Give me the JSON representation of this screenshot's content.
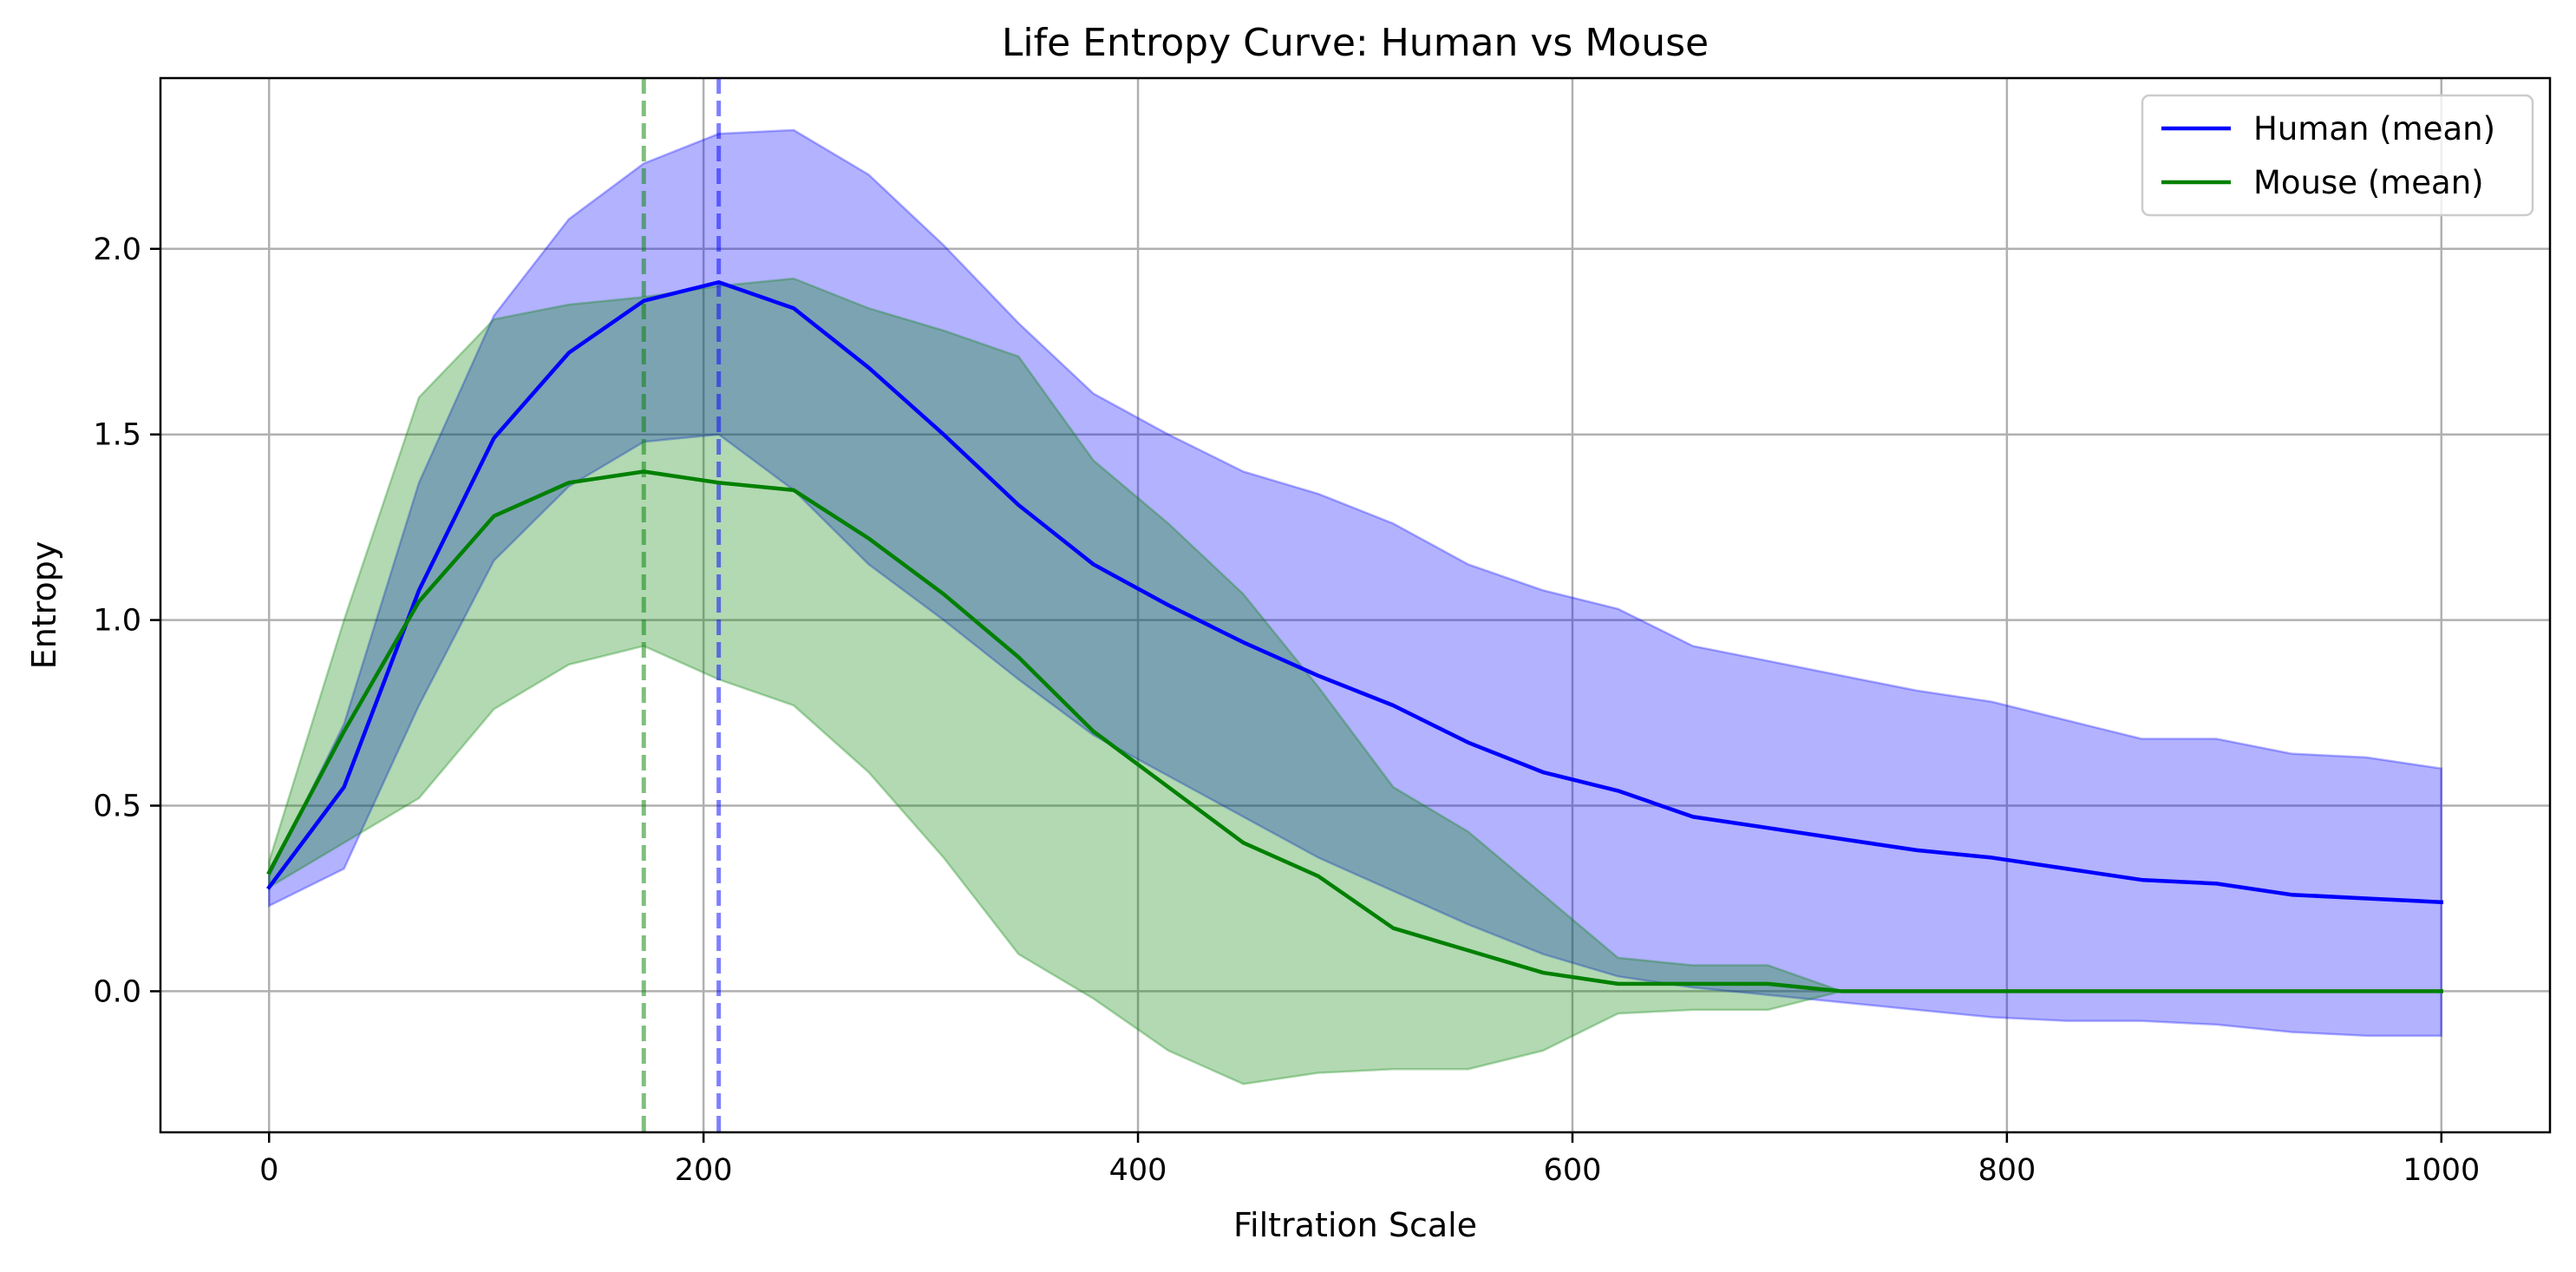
{
  "chart_data": {
    "type": "line",
    "title": "Life Entropy Curve: Human vs Mouse",
    "xlabel": "Filtration Scale",
    "ylabel": "Entropy",
    "xlim": [
      -50,
      1050
    ],
    "ylim": [
      -0.38,
      2.46
    ],
    "xticks": [
      0,
      200,
      400,
      600,
      800,
      1000
    ],
    "xtick_labels": [
      "0",
      "200",
      "400",
      "600",
      "800",
      "1000"
    ],
    "yticks": [
      0.0,
      0.5,
      1.0,
      1.5,
      2.0
    ],
    "ytick_labels": [
      "0.0",
      "0.5",
      "1.0",
      "1.5",
      "2.0"
    ],
    "grid": true,
    "legend_position": "top-right",
    "x": [
      0,
      34.5,
      69,
      103.5,
      138,
      172.5,
      207,
      241.5,
      276,
      310.5,
      345,
      379.5,
      414,
      448.5,
      483,
      517.5,
      552,
      586.5,
      621,
      655.5,
      690,
      724,
      758.5,
      793,
      827.5,
      862,
      896.5,
      931,
      965.5,
      1000
    ],
    "series": [
      {
        "name": "Human (mean)",
        "color": "#0000ff",
        "band_color": "#0000ff",
        "mean": [
          0.28,
          0.55,
          1.08,
          1.49,
          1.72,
          1.86,
          1.91,
          1.84,
          1.68,
          1.5,
          1.31,
          1.15,
          1.04,
          0.94,
          0.85,
          0.77,
          0.67,
          0.59,
          0.54,
          0.47,
          0.44,
          0.41,
          0.38,
          0.36,
          0.33,
          0.3,
          0.29,
          0.26,
          0.25,
          0.24
        ],
        "upper": [
          0.31,
          0.72,
          1.37,
          1.82,
          2.08,
          2.23,
          2.31,
          2.32,
          2.2,
          2.01,
          1.8,
          1.61,
          1.5,
          1.4,
          1.34,
          1.26,
          1.15,
          1.08,
          1.03,
          0.93,
          0.89,
          0.85,
          0.81,
          0.78,
          0.73,
          0.68,
          0.68,
          0.64,
          0.63,
          0.6
        ],
        "lower": [
          0.23,
          0.33,
          0.77,
          1.16,
          1.36,
          1.48,
          1.5,
          1.35,
          1.15,
          1.0,
          0.84,
          0.69,
          0.58,
          0.47,
          0.36,
          0.27,
          0.18,
          0.1,
          0.04,
          0.01,
          -0.01,
          -0.03,
          -0.05,
          -0.07,
          -0.08,
          -0.08,
          -0.09,
          -0.11,
          -0.12,
          -0.12
        ],
        "peak_x": 207
      },
      {
        "name": "Mouse (mean)",
        "color": "#008000",
        "band_color": "#008000",
        "mean": [
          0.32,
          0.7,
          1.05,
          1.28,
          1.37,
          1.4,
          1.37,
          1.35,
          1.22,
          1.07,
          0.9,
          0.7,
          0.55,
          0.4,
          0.31,
          0.17,
          0.11,
          0.05,
          0.02,
          0.02,
          0.02,
          0.0,
          0.0,
          0.0,
          0.0,
          0.0,
          0.0,
          0.0,
          0.0,
          0.0
        ],
        "upper": [
          0.35,
          1.0,
          1.6,
          1.81,
          1.85,
          1.87,
          1.9,
          1.92,
          1.84,
          1.78,
          1.71,
          1.43,
          1.26,
          1.07,
          0.82,
          0.55,
          0.43,
          0.26,
          0.09,
          0.07,
          0.07,
          0.0,
          0.0,
          0.0,
          0.0,
          0.0,
          0.0,
          0.0,
          0.0,
          0.0
        ],
        "lower": [
          0.28,
          0.4,
          0.52,
          0.76,
          0.88,
          0.93,
          0.84,
          0.77,
          0.59,
          0.36,
          0.1,
          -0.02,
          -0.16,
          -0.25,
          -0.22,
          -0.21,
          -0.21,
          -0.16,
          -0.06,
          -0.05,
          -0.05,
          0.0,
          0.0,
          0.0,
          0.0,
          0.0,
          0.0,
          0.0,
          0.0,
          0.0
        ],
        "peak_x": 172.5
      }
    ]
  }
}
